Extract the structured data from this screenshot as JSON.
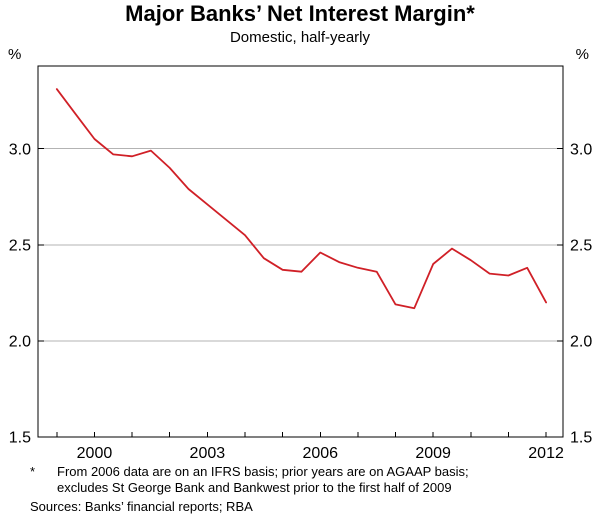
{
  "chart": {
    "title": "Major Banks’ Net Interest Margin*",
    "subtitle": "Domestic, half-yearly",
    "unit_left": "%",
    "unit_right": "%"
  },
  "chart_data": {
    "type": "line",
    "title": "Major Banks’ Net Interest Margin*",
    "subtitle": "Domestic, half-yearly",
    "series_name": "Major banks' net interest margin (%)",
    "x": [
      1999.0,
      1999.5,
      2000.0,
      2000.5,
      2001.0,
      2001.5,
      2002.0,
      2002.5,
      2003.0,
      2003.5,
      2004.0,
      2004.5,
      2005.0,
      2005.5,
      2006.0,
      2006.5,
      2007.0,
      2007.5,
      2008.0,
      2008.5,
      2009.0,
      2009.5,
      2010.0,
      2010.5,
      2011.0,
      2011.5,
      2012.0
    ],
    "values": [
      3.31,
      3.18,
      3.05,
      2.97,
      2.96,
      2.99,
      2.9,
      2.79,
      2.71,
      2.63,
      2.55,
      2.43,
      2.37,
      2.36,
      2.46,
      2.41,
      2.38,
      2.36,
      2.19,
      2.17,
      2.4,
      2.48,
      2.42,
      2.35,
      2.34,
      2.38,
      2.2
    ],
    "xlim": [
      1998.5,
      2012.45
    ],
    "ylim": [
      1.5,
      3.43
    ],
    "yticks": [
      1.5,
      2.0,
      2.5,
      3.0
    ],
    "ytick_labels": [
      "1.5",
      "2.0",
      "2.5",
      "3.0"
    ],
    "gridlines": [
      2.0,
      2.5,
      3.0
    ],
    "grid": "horizontal-only",
    "xtick_positions": [
      2000,
      2003,
      2006,
      2009,
      2012
    ],
    "xtick_labels": [
      "2000",
      "2003",
      "2006",
      "2009",
      "2012"
    ],
    "x_minor_ticks": [
      1999,
      2000,
      2001,
      2002,
      2003,
      2004,
      2005,
      2006,
      2007,
      2008,
      2009,
      2010,
      2011,
      2012
    ],
    "legend": "none",
    "line_color": "#d02027",
    "grid_color": "#b3b3b3",
    "axis_color": "#000000"
  },
  "footnote": {
    "marker": "*",
    "lines": [
      "From 2006 data are on an IFRS basis; prior years are on AGAAP basis;",
      "excludes St George Bank and Bankwest prior to the first half of 2009"
    ],
    "sources": "Sources: Banks’ financial reports; RBA"
  }
}
